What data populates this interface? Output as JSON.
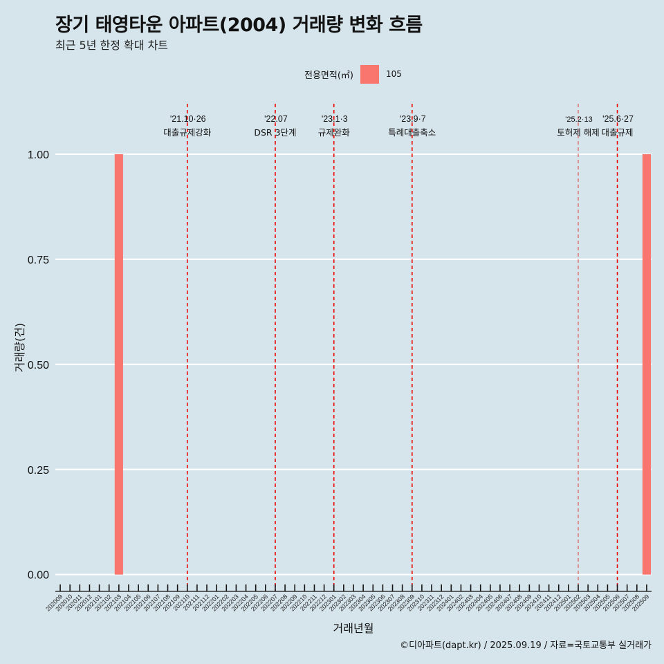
{
  "header": {
    "title": "장기 태영타운 아파트(2004) 거래량 변화 흐름",
    "subtitle": "최근 5년 한정 확대 차트"
  },
  "legend": {
    "title": "전용면적(㎡)",
    "entries": [
      {
        "label": "105",
        "color": "#f8766d"
      }
    ]
  },
  "footer": {
    "credit": "©디아파트(dapt.kr) / 2025.09.19 / 자료=국토교통부 실거래가"
  },
  "chart_data": {
    "type": "bar",
    "title": "장기 태영타운 아파트(2004) 거래량 변화 흐름",
    "xlabel": "거래년월",
    "ylabel": "거래량(건)",
    "ylim": [
      -0.04,
      1.12
    ],
    "yticks": [
      0.0,
      0.25,
      0.5,
      0.75,
      1.0
    ],
    "ytick_labels": [
      "0.00",
      "0.25",
      "0.50",
      "0.75",
      "1.00"
    ],
    "categories": [
      "202009",
      "202010",
      "202011",
      "202012",
      "202101",
      "202102",
      "202103",
      "202104",
      "202105",
      "202106",
      "202107",
      "202108",
      "202109",
      "202110",
      "202111",
      "202112",
      "202201",
      "202202",
      "202203",
      "202204",
      "202205",
      "202206",
      "202207",
      "202208",
      "202209",
      "202210",
      "202211",
      "202212",
      "202301",
      "202302",
      "202303",
      "202304",
      "202305",
      "202306",
      "202307",
      "202308",
      "202309",
      "202310",
      "202311",
      "202312",
      "202401",
      "202402",
      "202403",
      "202404",
      "202405",
      "202406",
      "202407",
      "202408",
      "202409",
      "202410",
      "202411",
      "202412",
      "202501",
      "202502",
      "202503",
      "202504",
      "202505",
      "202506",
      "202507",
      "202508",
      "202509"
    ],
    "series": [
      {
        "name": "105",
        "color": "#f8766d",
        "values": [
          0,
          0,
          0,
          0,
          0,
          0,
          1,
          0,
          0,
          0,
          0,
          0,
          0,
          0,
          0,
          0,
          0,
          0,
          0,
          0,
          0,
          0,
          0,
          0,
          0,
          0,
          0,
          0,
          0,
          0,
          0,
          0,
          0,
          0,
          0,
          0,
          0,
          0,
          0,
          0,
          0,
          0,
          0,
          0,
          0,
          0,
          0,
          0,
          0,
          0,
          0,
          0,
          0,
          0,
          0,
          0,
          0,
          0,
          0,
          0,
          1
        ]
      }
    ],
    "annotations": [
      {
        "category": "202110",
        "date": "'21.10·26",
        "label": "대출규제강화",
        "style": "dashed"
      },
      {
        "category": "202207",
        "date": "'22.07",
        "label": "DSR 3단계",
        "style": "dashed"
      },
      {
        "category": "202301",
        "date": "'23.1·3",
        "label": "규제완화",
        "style": "dashed"
      },
      {
        "category": "202309",
        "date": "'23.9·7",
        "label": "특례대출축소",
        "style": "dashed"
      },
      {
        "category": "202502",
        "date": "'25.2·13",
        "label": "토허제 해제",
        "style": "thin"
      },
      {
        "category": "202506",
        "date": "'25.6·27",
        "label": "대출규제",
        "style": "dashed"
      }
    ],
    "grid": true,
    "legend_position": "top"
  }
}
